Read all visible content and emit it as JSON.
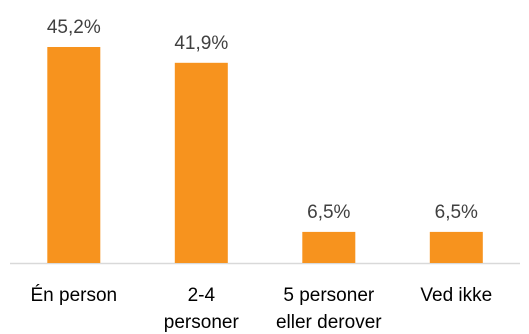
{
  "chart_data": {
    "type": "bar",
    "categories": [
      [
        "Én person"
      ],
      [
        "2-4",
        "personer"
      ],
      [
        "5 personer",
        "eller derover"
      ],
      [
        "Ved ikke"
      ]
    ],
    "values": [
      45.2,
      41.9,
      6.5,
      6.5
    ],
    "value_labels": [
      "45,2%",
      "41,9%",
      "6,5%",
      "6,5%"
    ],
    "title": "",
    "xlabel": "",
    "ylabel": "",
    "ylim": [
      0,
      45.2
    ],
    "grid": false,
    "legend": "none",
    "bar_color": "#F7931E",
    "axis_color": "#D9D9D9",
    "label_color": "#404040"
  }
}
